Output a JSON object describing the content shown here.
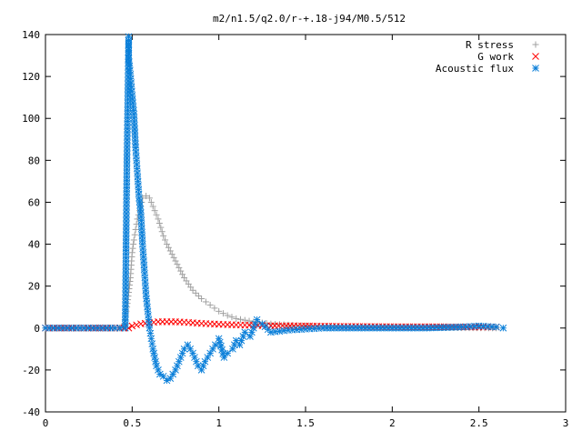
{
  "chart_data": {
    "type": "scatter",
    "title": "m2/n1.5/q2.0/r-+.18-j94/M0.5/512",
    "xlabel": "",
    "ylabel": "",
    "xlim": [
      0,
      3
    ],
    "ylim": [
      -40,
      140
    ],
    "xticks": [
      0,
      0.5,
      1,
      1.5,
      2,
      2.5,
      3
    ],
    "xtick_labels": [
      "0",
      "0.5",
      "1",
      "1.5",
      "2",
      "2.5",
      "3"
    ],
    "yticks": [
      -40,
      -20,
      0,
      20,
      40,
      60,
      80,
      100,
      120,
      140
    ],
    "ytick_labels": [
      "-40",
      "-20",
      "0",
      "20",
      "40",
      "60",
      "80",
      "100",
      "120",
      "140"
    ],
    "grid": false,
    "legend_position": "top-right",
    "series": [
      {
        "name": "R stress",
        "marker": "+",
        "color": "#a0a0a0",
        "x": [
          0.0,
          0.1,
          0.2,
          0.3,
          0.4,
          0.45,
          0.47,
          0.48,
          0.49,
          0.5,
          0.51,
          0.52,
          0.53,
          0.55,
          0.56,
          0.58,
          0.6,
          0.62,
          0.65,
          0.68,
          0.7,
          0.75,
          0.8,
          0.85,
          0.9,
          0.95,
          1.0,
          1.05,
          1.1,
          1.2,
          1.3,
          1.4,
          1.5,
          1.6,
          1.8,
          2.0,
          2.2,
          2.4,
          2.6
        ],
        "y": [
          0,
          0,
          0,
          0,
          0,
          0,
          10,
          17,
          24,
          36,
          42,
          47,
          52,
          58,
          62,
          63,
          62,
          58,
          52,
          44,
          40,
          32,
          24,
          18,
          14,
          11,
          8,
          6,
          4.5,
          3,
          2,
          1.5,
          1,
          0.8,
          0.5,
          0.3,
          0.2,
          0.1,
          0
        ]
      },
      {
        "name": "G work",
        "marker": "x",
        "color": "#ff0000",
        "x": [
          0.0,
          0.2,
          0.4,
          0.48,
          0.5,
          0.55,
          0.6,
          0.65,
          0.7,
          0.75,
          0.8,
          0.85,
          0.9,
          0.95,
          1.0,
          1.1,
          1.2,
          1.3,
          1.5,
          1.7,
          1.9,
          2.1,
          2.3,
          2.5,
          2.6
        ],
        "y": [
          0,
          0,
          0,
          0,
          1,
          2,
          2.5,
          3,
          3,
          3,
          2.8,
          2.5,
          2.2,
          2,
          1.8,
          1.5,
          1.3,
          1.1,
          1,
          0.8,
          0.7,
          0.6,
          0.6,
          0.5,
          0.5
        ]
      },
      {
        "name": "Acoustic flux",
        "marker": "*",
        "color": "#0a7fd9",
        "x": [
          0.0,
          0.1,
          0.2,
          0.3,
          0.4,
          0.46,
          0.47,
          0.48,
          0.48,
          0.49,
          0.5,
          0.51,
          0.52,
          0.53,
          0.54,
          0.55,
          0.56,
          0.57,
          0.58,
          0.59,
          0.6,
          0.61,
          0.62,
          0.63,
          0.64,
          0.65,
          0.66,
          0.68,
          0.7,
          0.72,
          0.75,
          0.78,
          0.8,
          0.82,
          0.85,
          0.88,
          0.9,
          0.92,
          0.95,
          0.98,
          1.0,
          1.03,
          1.05,
          1.08,
          1.1,
          1.12,
          1.15,
          1.18,
          1.2,
          1.22,
          1.25,
          1.3,
          1.4,
          1.5,
          1.6,
          1.8,
          2.0,
          2.2,
          2.4,
          2.5,
          2.6,
          2.64
        ],
        "y": [
          0,
          0,
          0,
          0,
          0,
          0,
          81,
          139,
          129,
          121,
          111,
          102,
          86,
          74,
          62,
          55,
          40,
          28,
          16,
          8,
          0,
          -5,
          -10,
          -14,
          -18,
          -20,
          -22,
          -23,
          -25,
          -24,
          -20,
          -14,
          -10,
          -8,
          -12,
          -18,
          -20,
          -16,
          -12,
          -8,
          -5,
          -14,
          -12,
          -10,
          -6,
          -8,
          -2,
          -4,
          0,
          4,
          2,
          -2,
          -1,
          -0.5,
          0,
          0,
          0,
          0,
          0.5,
          1,
          0.5,
          0
        ]
      }
    ]
  }
}
